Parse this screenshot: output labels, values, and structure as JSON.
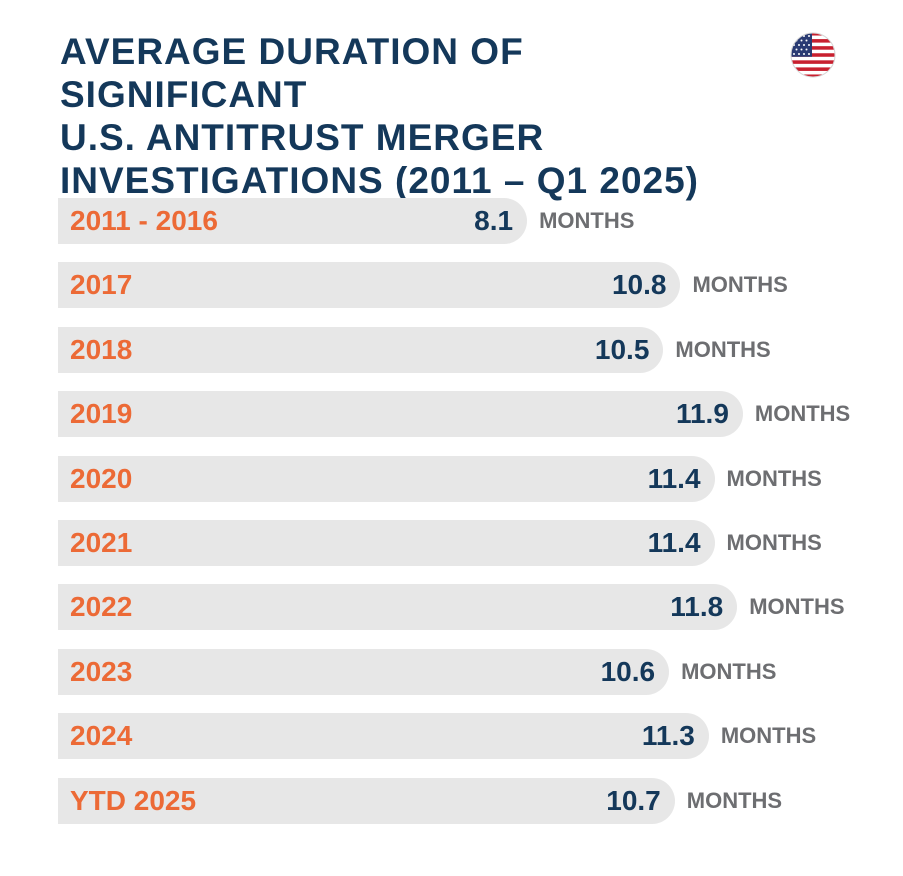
{
  "title_lines": [
    "AVERAGE DURATION OF SIGNIFICANT",
    "U.S. ANTITRUST MERGER",
    "INVESTIGATIONS (2011 – Q1 2025)"
  ],
  "flag_icon": "us-flag-icon",
  "colors": {
    "title": "#14385a",
    "category": "#ec6a36",
    "value": "#14385a",
    "unit": "#6d6e71",
    "bar": "#e7e7e7"
  },
  "chart_data": {
    "type": "bar",
    "orientation": "horizontal",
    "unit": "MONTHS",
    "categories": [
      "2011 - 2016",
      "2017",
      "2018",
      "2019",
      "2020",
      "2021",
      "2022",
      "2023",
      "2024",
      "YTD 2025"
    ],
    "values": [
      8.1,
      10.8,
      10.5,
      11.9,
      11.4,
      11.4,
      11.8,
      10.6,
      11.3,
      10.7
    ],
    "value_labels": [
      "8.1",
      "10.8",
      "10.5",
      "11.9",
      "11.4",
      "11.4",
      "11.8",
      "10.6",
      "11.3",
      "10.7"
    ]
  }
}
